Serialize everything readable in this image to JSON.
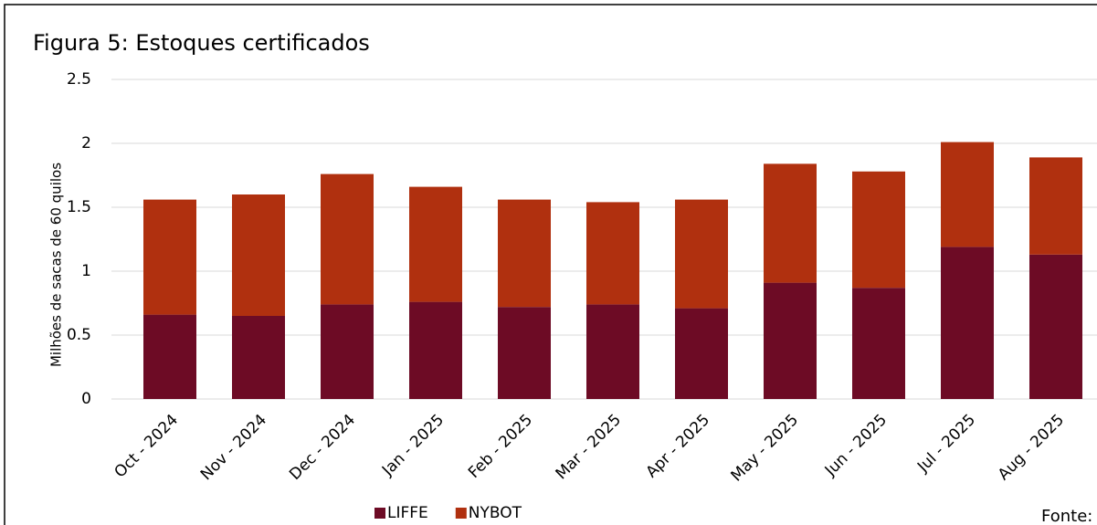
{
  "chart_data": {
    "type": "bar",
    "stacked": true,
    "title": "Figura 5: Estoques certificados",
    "y_label": "Milhões de sacas de 60 quilos",
    "source": "Fonte: ICE",
    "categories": [
      "Oct - 2024",
      "Nov - 2024",
      "Dec - 2024",
      "Jan - 2025",
      "Feb - 2025",
      "Mar - 2025",
      "Apr - 2025",
      "May - 2025",
      "Jun - 2025",
      "Jul - 2025",
      "Aug - 2025"
    ],
    "series": [
      {
        "name": "LIFFE",
        "color": "#6d0b25",
        "values": [
          0.66,
          0.65,
          0.74,
          0.76,
          0.72,
          0.74,
          0.71,
          0.91,
          0.87,
          1.19,
          1.13
        ]
      },
      {
        "name": "NYBOT",
        "color": "#b0300f",
        "values": [
          0.9,
          0.95,
          1.02,
          0.9,
          0.84,
          0.8,
          0.85,
          0.93,
          0.91,
          0.82,
          0.76
        ]
      }
    ],
    "ylim": [
      0,
      2.5
    ],
    "yticks": [
      0,
      0.5,
      1,
      1.5,
      2,
      2.5
    ],
    "grid": true,
    "legend": "bottom"
  }
}
